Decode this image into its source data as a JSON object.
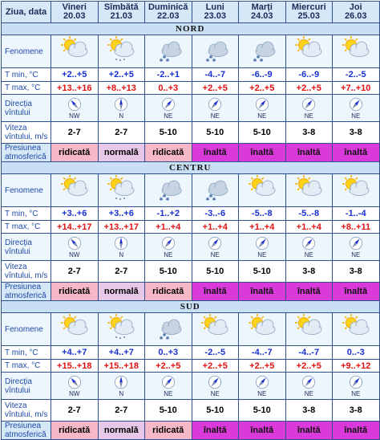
{
  "header": {
    "label": "Ziua, data",
    "days": [
      {
        "name": "Vineri",
        "date": "20.03"
      },
      {
        "name": "Sîmbătă",
        "date": "21.03"
      },
      {
        "name": "Duminică",
        "date": "22.03"
      },
      {
        "name": "Luni",
        "date": "23.03"
      },
      {
        "name": "Marți",
        "date": "24.03"
      },
      {
        "name": "Miercuri",
        "date": "25.03"
      },
      {
        "name": "Joi",
        "date": "26.03"
      }
    ]
  },
  "row_labels": {
    "fenomene": "Fenomene",
    "tmin": "T min, °C",
    "tmax": "T max, °C",
    "dir": "Direcția vîntului",
    "speed": "Viteza vîntului, m/s",
    "pressure": "Presiunea atmosferică"
  },
  "regions": [
    {
      "name": "NORD",
      "weather": [
        "partly-cloudy-icon",
        "partly-cloudy-drizzle-icon",
        "cloudy-snow-icon",
        "cloudy-snow-icon",
        "cloudy-snow-icon",
        "partly-cloudy-icon",
        "partly-cloudy-icon"
      ],
      "tmin": [
        "+2..+5",
        "+2..+5",
        "-2..+1",
        "-4..-7",
        "-6..-9",
        "-6..-9",
        "-2..-5"
      ],
      "tmax": [
        "+13..+16",
        "+8..+13",
        "0..+3",
        "+2..+5",
        "+2..+5",
        "+2..+5",
        "+7..+10"
      ],
      "wind_dir": [
        "NW",
        "N",
        "NE",
        "NE",
        "NE",
        "NE",
        "NE"
      ],
      "wind_speed": [
        "2-7",
        "2-7",
        "5-10",
        "5-10",
        "5-10",
        "3-8",
        "3-8"
      ],
      "pressure": [
        "ridicată",
        "normală",
        "ridicată",
        "înaltă",
        "înaltă",
        "înaltă",
        "înaltă"
      ]
    },
    {
      "name": "CENTRU",
      "weather": [
        "partly-cloudy-icon",
        "partly-cloudy-drizzle-icon",
        "cloudy-snow-icon",
        "cloudy-snow-icon",
        "partly-cloudy-icon",
        "partly-cloudy-icon",
        "partly-cloudy-icon"
      ],
      "tmin": [
        "+3..+6",
        "+3..+6",
        "-1..+2",
        "-3..-6",
        "-5..-8",
        "-5..-8",
        "-1..-4"
      ],
      "tmax": [
        "+14..+17",
        "+13..+17",
        "+1..+4",
        "+1..+4",
        "+1..+4",
        "+1..+4",
        "+8..+11"
      ],
      "wind_dir": [
        "NW",
        "N",
        "NE",
        "NE",
        "NE",
        "NE",
        "NE"
      ],
      "wind_speed": [
        "2-7",
        "2-7",
        "5-10",
        "5-10",
        "5-10",
        "3-8",
        "3-8"
      ],
      "pressure": [
        "ridicată",
        "normală",
        "ridicată",
        "înaltă",
        "înaltă",
        "înaltă",
        "înaltă"
      ]
    },
    {
      "name": "SUD",
      "weather": [
        "partly-cloudy-icon",
        "partly-cloudy-drizzle-icon",
        "cloudy-snow-icon",
        "partly-cloudy-icon",
        "partly-cloudy-icon",
        "partly-cloudy-icon",
        "partly-cloudy-icon"
      ],
      "tmin": [
        "+4..+7",
        "+4..+7",
        "0..+3",
        "-2..-5",
        "-4..-7",
        "-4..-7",
        "0..-3"
      ],
      "tmax": [
        "+15..+18",
        "+15..+18",
        "+2..+5",
        "+2..+5",
        "+2..+5",
        "+2..+5",
        "+9..+12"
      ],
      "wind_dir": [
        "NW",
        "N",
        "NE",
        "NE",
        "NE",
        "NE",
        "NE"
      ],
      "wind_speed": [
        "2-7",
        "2-7",
        "5-10",
        "5-10",
        "5-10",
        "3-8",
        "3-8"
      ],
      "pressure": [
        "ridicată",
        "normală",
        "ridicată",
        "înaltă",
        "înaltă",
        "înaltă",
        "înaltă"
      ]
    }
  ],
  "colors": {
    "border": "#2f4f8f",
    "header_bg": "#d6e8f7",
    "tmin_text": "#1a2fd0",
    "tmax_text": "#e01010",
    "pressure_high_bg": "#d93ad9",
    "pressure_raised_bg": "#f6b7c8",
    "pressure_normal_bg": "#e8c8e8"
  }
}
